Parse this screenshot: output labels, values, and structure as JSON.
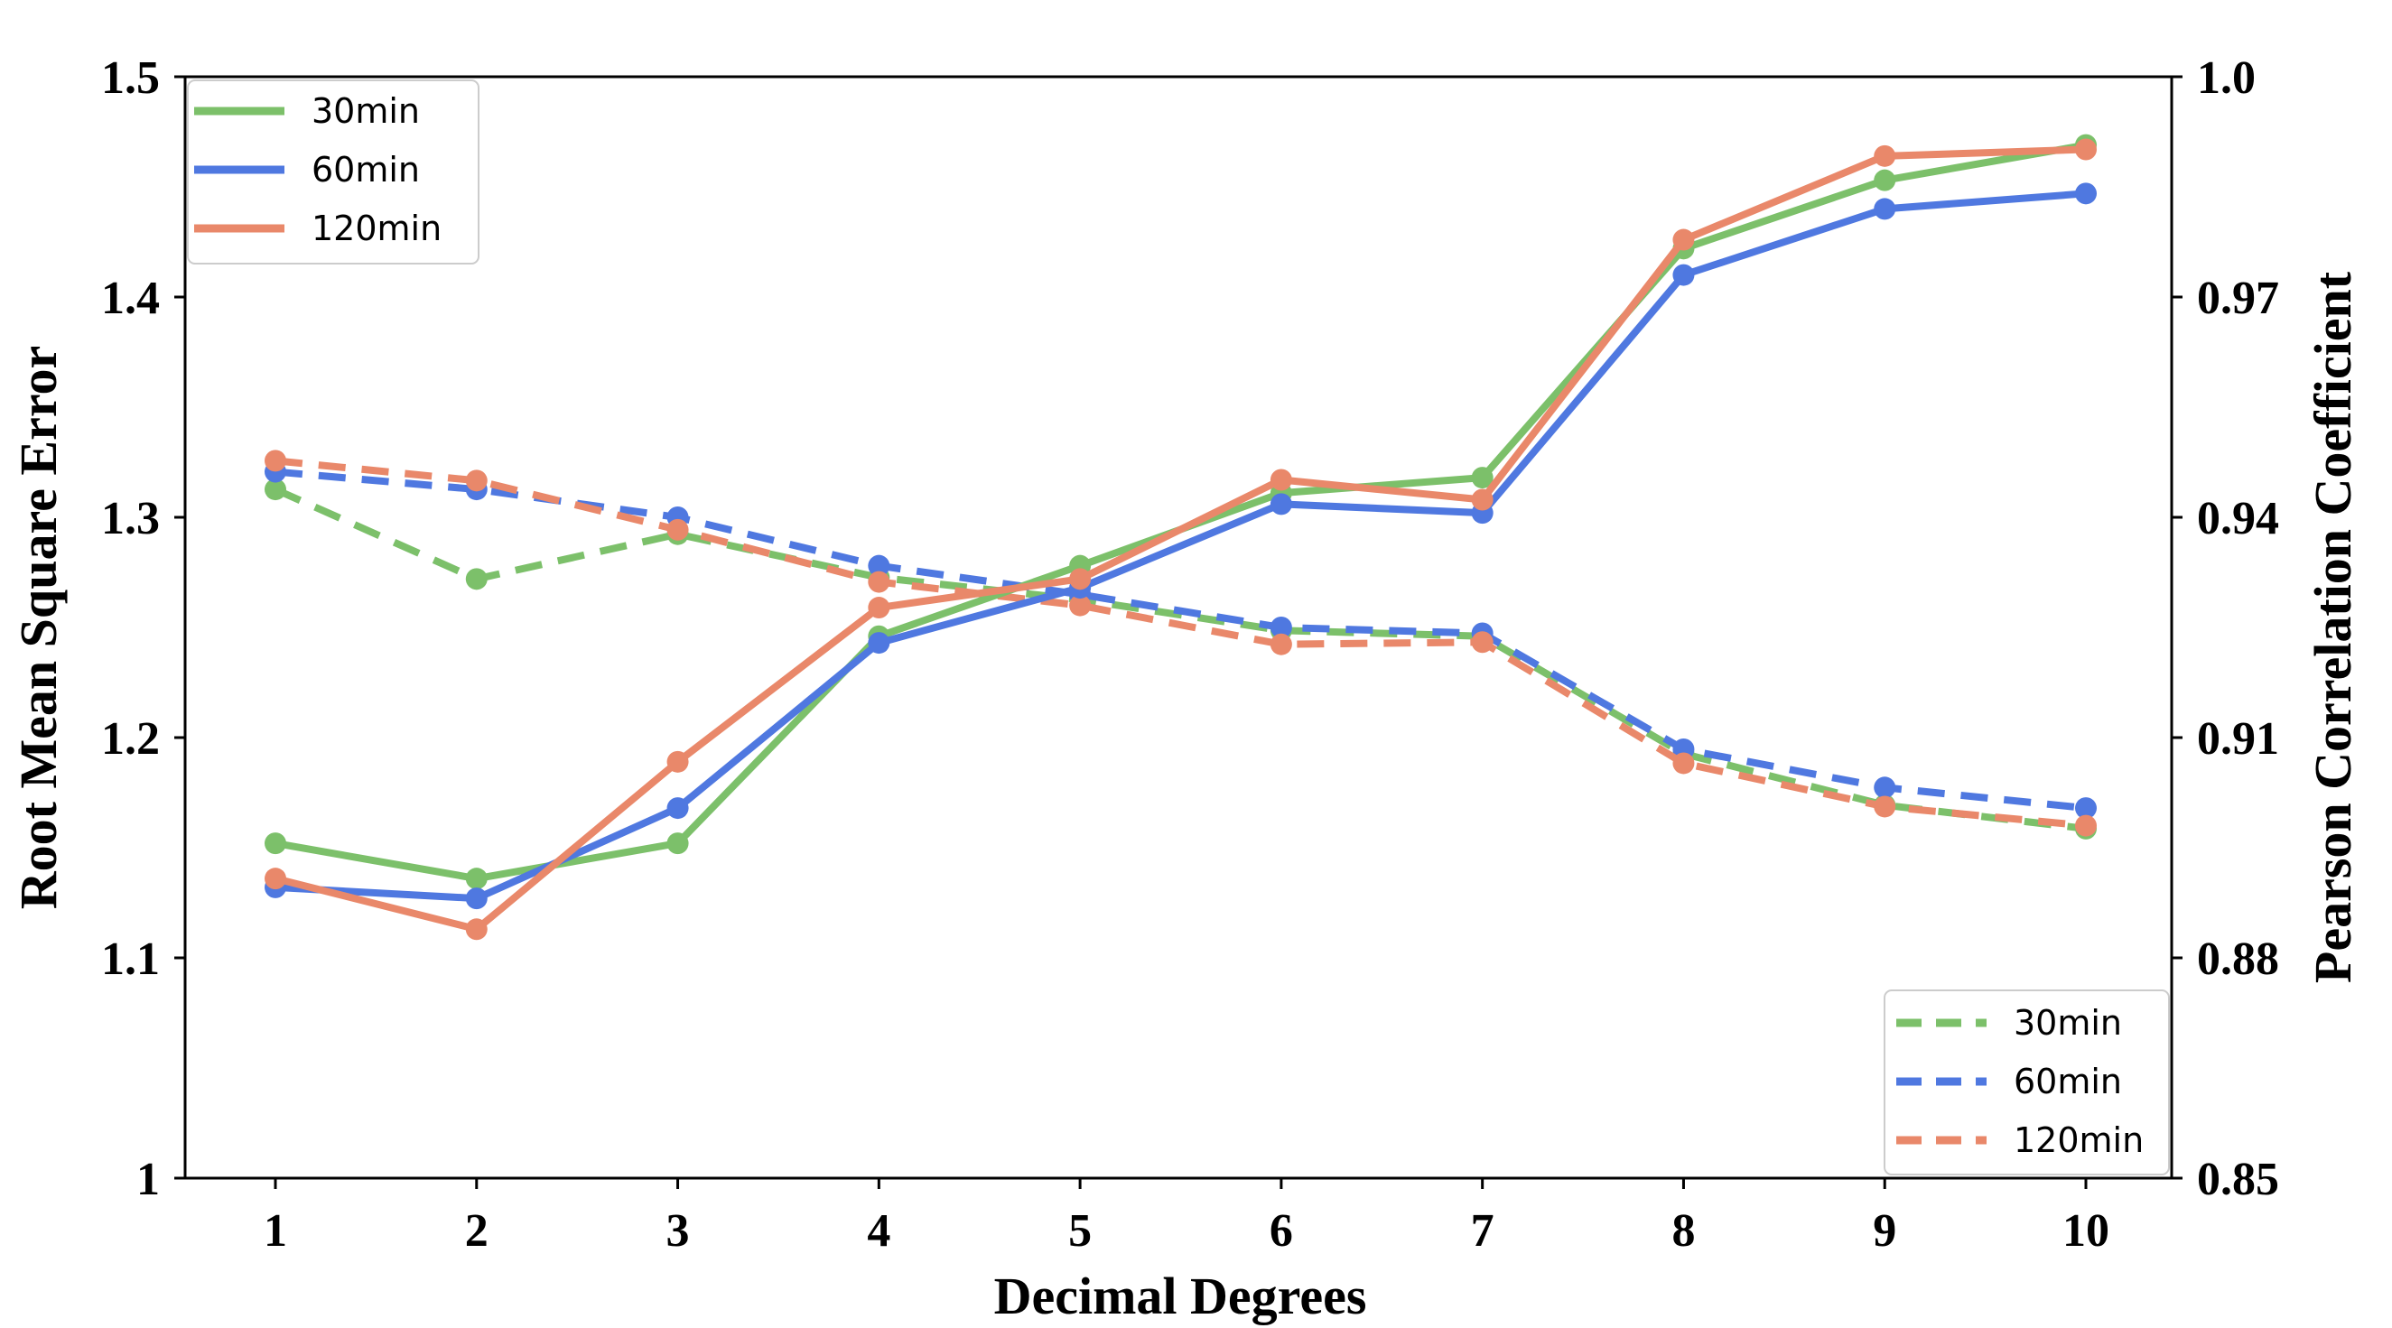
{
  "chart_data": {
    "type": "line",
    "xlabel": "Decimal Degrees",
    "ylabel_left": "Root Mean Square Error",
    "ylabel_right": "Pearson Correlation Coefficient",
    "categories": [
      1,
      2,
      3,
      4,
      5,
      6,
      7,
      8,
      9,
      10
    ],
    "ylim_left": [
      1.0,
      1.5
    ],
    "yticks_left": [
      "1",
      "1.1",
      "1.2",
      "1.3",
      "1.4",
      "1.5"
    ],
    "ylim_right": [
      0.85,
      1.0
    ],
    "yticks_right": [
      "0.85",
      "0.88",
      "0.91",
      "0.94",
      "0.97",
      "1.0"
    ],
    "colors": {
      "30min": "#7cc06a",
      "60min": "#4f78e0",
      "120min": "#e9886a"
    },
    "series_rmse": [
      {
        "name": "30min",
        "values": [
          1.152,
          1.136,
          1.152,
          1.246,
          1.278,
          1.311,
          1.318,
          1.422,
          1.453,
          1.469
        ]
      },
      {
        "name": "60min",
        "values": [
          1.132,
          1.127,
          1.168,
          1.243,
          1.268,
          1.306,
          1.302,
          1.41,
          1.44,
          1.447
        ]
      },
      {
        "name": "120min",
        "values": [
          1.136,
          1.113,
          1.189,
          1.259,
          1.272,
          1.317,
          1.308,
          1.426,
          1.464,
          1.467
        ]
      }
    ],
    "series_pearson": [
      {
        "name": "30min",
        "values": [
          0.9438,
          0.9316,
          0.9377,
          0.9318,
          0.9288,
          0.9246,
          0.9238,
          0.9078,
          0.9008,
          0.8976
        ]
      },
      {
        "name": "60min",
        "values": [
          0.9462,
          0.9438,
          0.94,
          0.9334,
          0.9295,
          0.925,
          0.9242,
          0.9084,
          0.9032,
          0.9004
        ]
      },
      {
        "name": "120min",
        "values": [
          0.9477,
          0.945,
          0.9383,
          0.9312,
          0.928,
          0.9227,
          0.923,
          0.9065,
          0.9006,
          0.898
        ]
      }
    ],
    "legend_solid": {
      "placement": "top-left",
      "items": [
        {
          "name": "30min",
          "label": "30min"
        },
        {
          "name": "60min",
          "label": "60min"
        },
        {
          "name": "120min",
          "label": "120min"
        }
      ]
    },
    "legend_dashed": {
      "placement": "bottom-right",
      "items": [
        {
          "name": "30min",
          "label": "30min"
        },
        {
          "name": "60min",
          "label": "60min"
        },
        {
          "name": "120min",
          "label": "120min"
        }
      ]
    }
  }
}
